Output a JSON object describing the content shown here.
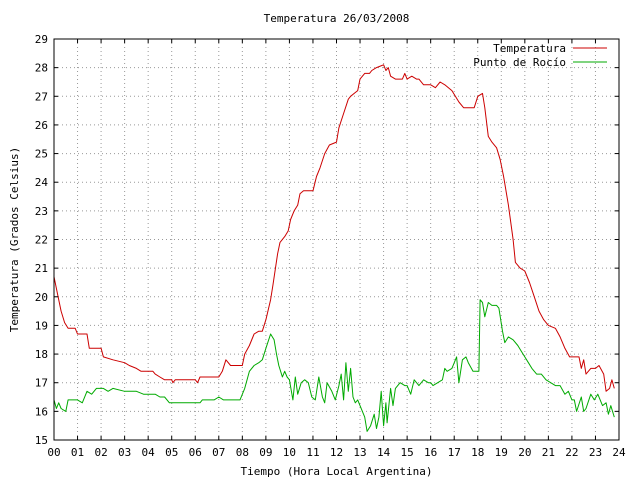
{
  "chart_data": {
    "type": "line",
    "title": "Temperatura 26/03/2008",
    "xlabel": "Tiempo (Hora Local Argentina)",
    "ylabel": "Temperatura (Grados Celsius)",
    "xlim": [
      0,
      24
    ],
    "ylim": [
      15,
      29
    ],
    "grid": true,
    "legend_position": "top-right",
    "x_ticks": [
      0,
      1,
      2,
      3,
      4,
      5,
      6,
      7,
      8,
      9,
      10,
      11,
      12,
      13,
      14,
      15,
      16,
      17,
      18,
      19,
      20,
      21,
      22,
      23,
      24
    ],
    "x_tick_labels": [
      "00",
      "01",
      "02",
      "03",
      "04",
      "05",
      "06",
      "07",
      "08",
      "09",
      "10",
      "11",
      "12",
      "13",
      "14",
      "15",
      "16",
      "17",
      "18",
      "19",
      "20",
      "21",
      "22",
      "23",
      "24"
    ],
    "y_ticks": [
      15,
      16,
      17,
      18,
      19,
      20,
      21,
      22,
      23,
      24,
      25,
      26,
      27,
      28,
      29
    ],
    "y_tick_labels": [
      "15",
      "16",
      "17",
      "18",
      "19",
      "20",
      "21",
      "22",
      "23",
      "24",
      "25",
      "26",
      "27",
      "28",
      "29"
    ],
    "series": [
      {
        "name": "Temperatura",
        "color": "#cc0000",
        "points": [
          [
            0.0,
            20.7
          ],
          [
            0.15,
            20.1
          ],
          [
            0.3,
            19.5
          ],
          [
            0.45,
            19.1
          ],
          [
            0.6,
            18.9
          ],
          [
            0.9,
            18.9
          ],
          [
            1.0,
            18.7
          ],
          [
            1.4,
            18.7
          ],
          [
            1.5,
            18.2
          ],
          [
            2.0,
            18.2
          ],
          [
            2.1,
            17.9
          ],
          [
            2.5,
            17.8
          ],
          [
            3.0,
            17.7
          ],
          [
            3.2,
            17.6
          ],
          [
            3.5,
            17.5
          ],
          [
            3.7,
            17.4
          ],
          [
            4.2,
            17.4
          ],
          [
            4.3,
            17.3
          ],
          [
            4.5,
            17.2
          ],
          [
            4.7,
            17.1
          ],
          [
            5.0,
            17.1
          ],
          [
            5.05,
            17.0
          ],
          [
            5.15,
            17.1
          ],
          [
            5.5,
            17.1
          ],
          [
            6.0,
            17.1
          ],
          [
            6.1,
            17.0
          ],
          [
            6.2,
            17.2
          ],
          [
            6.5,
            17.2
          ],
          [
            7.0,
            17.2
          ],
          [
            7.15,
            17.4
          ],
          [
            7.3,
            17.8
          ],
          [
            7.5,
            17.6
          ],
          [
            8.0,
            17.6
          ],
          [
            8.1,
            18.0
          ],
          [
            8.3,
            18.3
          ],
          [
            8.5,
            18.7
          ],
          [
            8.7,
            18.8
          ],
          [
            8.85,
            18.8
          ],
          [
            9.0,
            19.2
          ],
          [
            9.2,
            19.9
          ],
          [
            9.3,
            20.4
          ],
          [
            9.5,
            21.5
          ],
          [
            9.6,
            21.9
          ],
          [
            9.8,
            22.1
          ],
          [
            9.95,
            22.3
          ],
          [
            10.05,
            22.7
          ],
          [
            10.2,
            23.0
          ],
          [
            10.35,
            23.2
          ],
          [
            10.45,
            23.6
          ],
          [
            10.6,
            23.7
          ],
          [
            11.0,
            23.7
          ],
          [
            11.15,
            24.2
          ],
          [
            11.3,
            24.5
          ],
          [
            11.5,
            25.0
          ],
          [
            11.7,
            25.3
          ],
          [
            12.0,
            25.4
          ],
          [
            12.1,
            25.9
          ],
          [
            12.3,
            26.4
          ],
          [
            12.5,
            26.9
          ],
          [
            12.6,
            27.0
          ],
          [
            12.75,
            27.1
          ],
          [
            12.9,
            27.2
          ],
          [
            13.0,
            27.6
          ],
          [
            13.2,
            27.8
          ],
          [
            13.4,
            27.8
          ],
          [
            13.5,
            27.9
          ],
          [
            13.7,
            28.0
          ],
          [
            14.0,
            28.1
          ],
          [
            14.1,
            27.9
          ],
          [
            14.2,
            28.0
          ],
          [
            14.3,
            27.7
          ],
          [
            14.5,
            27.6
          ],
          [
            14.8,
            27.6
          ],
          [
            14.9,
            27.8
          ],
          [
            15.0,
            27.6
          ],
          [
            15.2,
            27.7
          ],
          [
            15.4,
            27.6
          ],
          [
            15.5,
            27.6
          ],
          [
            15.7,
            27.4
          ],
          [
            16.0,
            27.4
          ],
          [
            16.2,
            27.3
          ],
          [
            16.4,
            27.5
          ],
          [
            16.6,
            27.4
          ],
          [
            16.9,
            27.2
          ],
          [
            17.2,
            26.8
          ],
          [
            17.4,
            26.6
          ],
          [
            17.7,
            26.6
          ],
          [
            17.85,
            26.6
          ],
          [
            18.0,
            27.0
          ],
          [
            18.2,
            27.1
          ],
          [
            18.3,
            26.6
          ],
          [
            18.45,
            25.6
          ],
          [
            18.6,
            25.4
          ],
          [
            18.8,
            25.2
          ],
          [
            18.95,
            24.8
          ],
          [
            19.1,
            24.2
          ],
          [
            19.3,
            23.2
          ],
          [
            19.5,
            22.0
          ],
          [
            19.6,
            21.2
          ],
          [
            19.8,
            21.0
          ],
          [
            20.0,
            20.9
          ],
          [
            20.2,
            20.5
          ],
          [
            20.4,
            20.0
          ],
          [
            20.6,
            19.5
          ],
          [
            20.8,
            19.2
          ],
          [
            21.0,
            19.0
          ],
          [
            21.3,
            18.9
          ],
          [
            21.5,
            18.6
          ],
          [
            21.7,
            18.2
          ],
          [
            21.9,
            17.9
          ],
          [
            22.3,
            17.9
          ],
          [
            22.4,
            17.5
          ],
          [
            22.5,
            17.8
          ],
          [
            22.6,
            17.3
          ],
          [
            22.8,
            17.5
          ],
          [
            23.0,
            17.5
          ],
          [
            23.15,
            17.6
          ],
          [
            23.35,
            17.3
          ],
          [
            23.45,
            16.7
          ],
          [
            23.6,
            16.8
          ],
          [
            23.7,
            17.1
          ],
          [
            23.8,
            16.8
          ]
        ]
      },
      {
        "name": "Punto de Rocío",
        "color": "#00aa00",
        "points": [
          [
            0.0,
            16.4
          ],
          [
            0.1,
            16.1
          ],
          [
            0.2,
            16.3
          ],
          [
            0.3,
            16.1
          ],
          [
            0.5,
            16.0
          ],
          [
            0.6,
            16.4
          ],
          [
            1.0,
            16.4
          ],
          [
            1.2,
            16.3
          ],
          [
            1.4,
            16.7
          ],
          [
            1.6,
            16.6
          ],
          [
            1.8,
            16.8
          ],
          [
            2.1,
            16.8
          ],
          [
            2.3,
            16.7
          ],
          [
            2.5,
            16.8
          ],
          [
            3.0,
            16.7
          ],
          [
            3.5,
            16.7
          ],
          [
            3.8,
            16.6
          ],
          [
            4.3,
            16.6
          ],
          [
            4.5,
            16.5
          ],
          [
            4.7,
            16.5
          ],
          [
            4.9,
            16.3
          ],
          [
            5.4,
            16.3
          ],
          [
            6.0,
            16.3
          ],
          [
            6.2,
            16.3
          ],
          [
            6.3,
            16.4
          ],
          [
            6.8,
            16.4
          ],
          [
            7.0,
            16.5
          ],
          [
            7.2,
            16.4
          ],
          [
            7.9,
            16.4
          ],
          [
            8.1,
            16.8
          ],
          [
            8.3,
            17.4
          ],
          [
            8.5,
            17.6
          ],
          [
            8.7,
            17.7
          ],
          [
            8.85,
            17.8
          ],
          [
            9.0,
            18.2
          ],
          [
            9.2,
            18.7
          ],
          [
            9.35,
            18.5
          ],
          [
            9.45,
            18.0
          ],
          [
            9.55,
            17.6
          ],
          [
            9.7,
            17.2
          ],
          [
            9.8,
            17.4
          ],
          [
            9.9,
            17.2
          ],
          [
            10.0,
            17.1
          ],
          [
            10.15,
            16.4
          ],
          [
            10.25,
            17.2
          ],
          [
            10.35,
            16.6
          ],
          [
            10.5,
            17.0
          ],
          [
            10.65,
            17.1
          ],
          [
            10.8,
            17.0
          ],
          [
            10.95,
            16.5
          ],
          [
            11.1,
            16.4
          ],
          [
            11.25,
            17.2
          ],
          [
            11.4,
            16.5
          ],
          [
            11.5,
            16.3
          ],
          [
            11.6,
            17.0
          ],
          [
            11.8,
            16.7
          ],
          [
            11.95,
            16.4
          ],
          [
            12.1,
            16.9
          ],
          [
            12.2,
            17.3
          ],
          [
            12.3,
            16.4
          ],
          [
            12.4,
            17.7
          ],
          [
            12.5,
            16.7
          ],
          [
            12.6,
            17.5
          ],
          [
            12.7,
            16.5
          ],
          [
            12.8,
            16.3
          ],
          [
            12.9,
            16.4
          ],
          [
            13.0,
            16.2
          ],
          [
            13.1,
            16.0
          ],
          [
            13.2,
            15.8
          ],
          [
            13.3,
            15.3
          ],
          [
            13.45,
            15.5
          ],
          [
            13.6,
            15.9
          ],
          [
            13.7,
            15.4
          ],
          [
            13.8,
            15.8
          ],
          [
            13.9,
            16.7
          ],
          [
            14.0,
            15.5
          ],
          [
            14.1,
            16.3
          ],
          [
            14.15,
            15.6
          ],
          [
            14.3,
            16.8
          ],
          [
            14.4,
            16.2
          ],
          [
            14.5,
            16.8
          ],
          [
            14.7,
            17.0
          ],
          [
            14.9,
            16.9
          ],
          [
            15.0,
            16.9
          ],
          [
            15.15,
            16.6
          ],
          [
            15.3,
            17.1
          ],
          [
            15.5,
            16.9
          ],
          [
            15.7,
            17.1
          ],
          [
            15.9,
            17.0
          ],
          [
            16.0,
            17.0
          ],
          [
            16.1,
            16.9
          ],
          [
            16.3,
            17.0
          ],
          [
            16.5,
            17.1
          ],
          [
            16.6,
            17.5
          ],
          [
            16.7,
            17.4
          ],
          [
            16.9,
            17.5
          ],
          [
            17.1,
            17.9
          ],
          [
            17.2,
            17.0
          ],
          [
            17.35,
            17.8
          ],
          [
            17.5,
            17.9
          ],
          [
            17.6,
            17.7
          ],
          [
            17.8,
            17.4
          ],
          [
            18.05,
            17.4
          ],
          [
            18.1,
            19.9
          ],
          [
            18.2,
            19.8
          ],
          [
            18.3,
            19.3
          ],
          [
            18.45,
            19.8
          ],
          [
            18.6,
            19.7
          ],
          [
            18.8,
            19.7
          ],
          [
            18.9,
            19.6
          ],
          [
            19.05,
            18.8
          ],
          [
            19.15,
            18.4
          ],
          [
            19.3,
            18.6
          ],
          [
            19.5,
            18.5
          ],
          [
            19.7,
            18.3
          ],
          [
            19.85,
            18.1
          ],
          [
            20.0,
            17.9
          ],
          [
            20.15,
            17.7
          ],
          [
            20.3,
            17.5
          ],
          [
            20.5,
            17.3
          ],
          [
            20.7,
            17.3
          ],
          [
            20.9,
            17.1
          ],
          [
            21.1,
            17.0
          ],
          [
            21.3,
            16.9
          ],
          [
            21.5,
            16.9
          ],
          [
            21.7,
            16.6
          ],
          [
            21.85,
            16.7
          ],
          [
            22.0,
            16.4
          ],
          [
            22.1,
            16.4
          ],
          [
            22.2,
            16.0
          ],
          [
            22.4,
            16.5
          ],
          [
            22.5,
            16.0
          ],
          [
            22.6,
            16.1
          ],
          [
            22.8,
            16.6
          ],
          [
            22.95,
            16.4
          ],
          [
            23.1,
            16.6
          ],
          [
            23.3,
            16.2
          ],
          [
            23.45,
            16.3
          ],
          [
            23.55,
            15.9
          ],
          [
            23.65,
            16.2
          ],
          [
            23.8,
            15.8
          ]
        ]
      }
    ]
  }
}
